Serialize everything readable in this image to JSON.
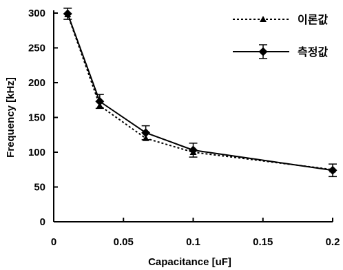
{
  "chart_data": {
    "type": "line",
    "xlabel": "Capacitance [uF]",
    "ylabel": "Frequency [kHz]",
    "xlim": [
      0,
      0.2
    ],
    "ylim": [
      0,
      300
    ],
    "xticks": [
      0,
      0.05,
      0.1,
      0.15,
      0.2
    ],
    "xtick_labels": [
      "0",
      "0.05",
      "0.1",
      "0.15",
      "0.2"
    ],
    "yticks": [
      0,
      50,
      100,
      150,
      200,
      250,
      300
    ],
    "ytick_labels": [
      "0",
      "50",
      "100",
      "150",
      "200",
      "250",
      "300"
    ],
    "grid": false,
    "legend_position": "top-right",
    "series": [
      {
        "name": "이론값",
        "line_style": "dotted",
        "marker": "triangle",
        "x": [
          0.01,
          0.033,
          0.066,
          0.1,
          0.2
        ],
        "y": [
          298,
          167,
          120,
          100,
          75
        ]
      },
      {
        "name": "측정값",
        "line_style": "solid",
        "marker": "diamond",
        "x": [
          0.01,
          0.033,
          0.066,
          0.1,
          0.2
        ],
        "y": [
          299,
          173,
          128,
          103,
          74
        ],
        "error": [
          8,
          10,
          10,
          10,
          9
        ]
      }
    ]
  }
}
